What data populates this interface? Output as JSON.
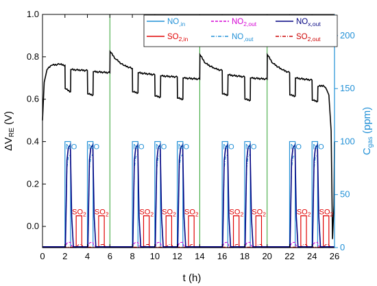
{
  "chart_data": {
    "type": "line",
    "xlabel": "t (h)",
    "ylabel_left": "ΔV_RE (V)",
    "ylabel_right": "C_gas (ppm)",
    "xlim": [
      0,
      26
    ],
    "ylim_left": [
      -0.1,
      1.0
    ],
    "ylim_right": [
      0,
      220
    ],
    "x_ticks": [
      0,
      2,
      4,
      6,
      8,
      10,
      12,
      14,
      16,
      18,
      20,
      22,
      24,
      26
    ],
    "y_ticks_left": [
      0.0,
      0.2,
      0.4,
      0.6,
      0.8,
      1.0
    ],
    "y_ticks_right": [
      0,
      50,
      100,
      150,
      200
    ],
    "grid": false,
    "legend_placement": "top-right",
    "cycle_boundaries_h": [
      6,
      14,
      20
    ],
    "cycles": [
      {
        "start": 0,
        "no_pulses": [
          [
            2.0,
            2.5
          ],
          [
            4.0,
            4.5
          ]
        ],
        "so2_pulses": [
          [
            3.0,
            3.5
          ],
          [
            5.0,
            5.5
          ]
        ]
      },
      {
        "start": 8,
        "no_pulses": [
          [
            8.0,
            8.5
          ],
          [
            10.0,
            10.5
          ],
          [
            12.0,
            12.5
          ]
        ],
        "so2_pulses": [
          [
            9.0,
            9.5
          ],
          [
            11.0,
            11.5
          ],
          [
            13.0,
            13.5
          ]
        ]
      },
      {
        "start": 16,
        "no_pulses": [
          [
            16.0,
            16.5
          ],
          [
            18.0,
            18.5
          ]
        ],
        "so2_pulses": [
          [
            17.0,
            17.5
          ],
          [
            19.0,
            19.5
          ]
        ]
      },
      {
        "start": 22,
        "no_pulses": [
          [
            22.0,
            22.5
          ],
          [
            24.0,
            24.5
          ]
        ],
        "so2_pulses": [
          [
            23.0,
            23.5
          ],
          [
            25.0,
            25.5
          ]
        ]
      }
    ],
    "no_in_ppm": 100,
    "so2_in_ppm": 30,
    "nox_out_peak_ppm": 97,
    "no_out_peak_ppm": 88,
    "no2_out_peak_ppm": 5,
    "so2_out_peak_ppm": 3,
    "sensor_voltage": [
      {
        "t": 0.0,
        "v": 0.5
      },
      {
        "t": 0.15,
        "v": 0.68
      },
      {
        "t": 0.4,
        "v": 0.74
      },
      {
        "t": 0.8,
        "v": 0.76
      },
      {
        "t": 1.5,
        "v": 0.765
      },
      {
        "t": 2.0,
        "v": 0.76
      },
      {
        "t": 2.02,
        "v": 0.65
      },
      {
        "t": 2.5,
        "v": 0.635
      },
      {
        "t": 2.52,
        "v": 0.74
      },
      {
        "t": 4.0,
        "v": 0.735
      },
      {
        "t": 4.02,
        "v": 0.625
      },
      {
        "t": 4.5,
        "v": 0.62
      },
      {
        "t": 4.52,
        "v": 0.73
      },
      {
        "t": 6.0,
        "v": 0.725
      },
      {
        "t": 6.02,
        "v": 0.825
      },
      {
        "t": 6.5,
        "v": 0.79
      },
      {
        "t": 7.2,
        "v": 0.76
      },
      {
        "t": 8.0,
        "v": 0.745
      },
      {
        "t": 8.02,
        "v": 0.635
      },
      {
        "t": 8.5,
        "v": 0.63
      },
      {
        "t": 8.52,
        "v": 0.725
      },
      {
        "t": 10.0,
        "v": 0.715
      },
      {
        "t": 10.02,
        "v": 0.615
      },
      {
        "t": 10.5,
        "v": 0.61
      },
      {
        "t": 10.52,
        "v": 0.71
      },
      {
        "t": 12.0,
        "v": 0.705
      },
      {
        "t": 12.02,
        "v": 0.605
      },
      {
        "t": 12.5,
        "v": 0.6
      },
      {
        "t": 12.52,
        "v": 0.7
      },
      {
        "t": 14.0,
        "v": 0.695
      },
      {
        "t": 14.02,
        "v": 0.81
      },
      {
        "t": 14.5,
        "v": 0.77
      },
      {
        "t": 15.3,
        "v": 0.745
      },
      {
        "t": 16.0,
        "v": 0.735
      },
      {
        "t": 16.02,
        "v": 0.625
      },
      {
        "t": 16.5,
        "v": 0.62
      },
      {
        "t": 16.52,
        "v": 0.715
      },
      {
        "t": 18.0,
        "v": 0.705
      },
      {
        "t": 18.02,
        "v": 0.6
      },
      {
        "t": 18.5,
        "v": 0.595
      },
      {
        "t": 18.52,
        "v": 0.7
      },
      {
        "t": 20.0,
        "v": 0.695
      },
      {
        "t": 20.02,
        "v": 0.81
      },
      {
        "t": 20.5,
        "v": 0.77
      },
      {
        "t": 21.3,
        "v": 0.74
      },
      {
        "t": 22.0,
        "v": 0.725
      },
      {
        "t": 22.02,
        "v": 0.62
      },
      {
        "t": 22.5,
        "v": 0.615
      },
      {
        "t": 22.52,
        "v": 0.7
      },
      {
        "t": 24.0,
        "v": 0.69
      },
      {
        "t": 24.02,
        "v": 0.595
      },
      {
        "t": 24.5,
        "v": 0.59
      },
      {
        "t": 24.52,
        "v": 0.66
      },
      {
        "t": 25.0,
        "v": 0.665
      },
      {
        "t": 25.3,
        "v": 0.645
      },
      {
        "t": 25.5,
        "v": 0.62
      },
      {
        "t": 25.7,
        "v": 0.45
      },
      {
        "t": 25.82,
        "v": -0.06
      },
      {
        "t": 25.95,
        "v": 0.1
      },
      {
        "t": 26.0,
        "v": 0.4
      }
    ],
    "legend": [
      {
        "key": "no_in",
        "text": "NO",
        "sub": ",in",
        "color": "#1f8fd6",
        "style": "solid"
      },
      {
        "key": "so2_in",
        "text": "SO",
        "sub": "2,in",
        "color": "#e00000",
        "style": "solid"
      },
      {
        "key": "no2_out",
        "text": "NO",
        "sub": "2,out",
        "color": "#d400d4",
        "style": "dash"
      },
      {
        "key": "no_out",
        "text": "NO",
        "sub": ",out",
        "color": "#1f8fd6",
        "style": "dashdot"
      },
      {
        "key": "nox_out",
        "text": "NO",
        "sub": "x,out",
        "color": "#000080",
        "style": "solid"
      },
      {
        "key": "so2_out",
        "text": "SO",
        "sub": "2,out",
        "color": "#cc0000",
        "style": "dashdot"
      }
    ],
    "annotations": {
      "no_label": "NO",
      "so2_label": "SO",
      "so2_sub": "2"
    },
    "colors": {
      "voltage": "#000000",
      "cycle_line": "#2ca02c",
      "right_axis": "#1f8fd6",
      "no_in": "#1f8fd6",
      "so2_in": "#e00000",
      "nox_out": "#000080",
      "no_out": "#1f8fd6",
      "no2_out": "#d400d4",
      "so2_out": "#cc0000"
    }
  }
}
